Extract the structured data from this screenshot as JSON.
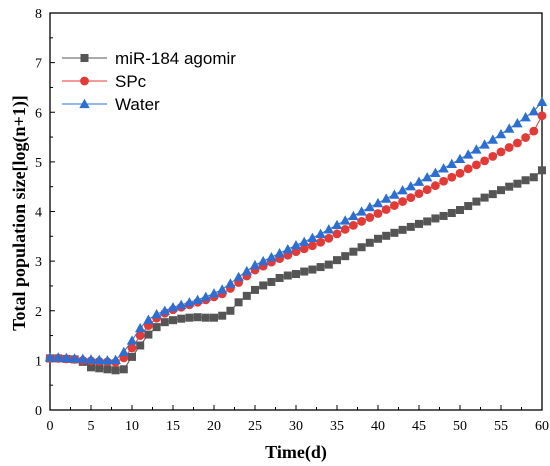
{
  "chart_data": {
    "type": "line",
    "title": "",
    "xlabel": "Time(d)",
    "ylabel": "Total population size[log(n+1)]",
    "xlim": [
      0,
      60
    ],
    "ylim": [
      0,
      8
    ],
    "x_ticks": [
      0,
      5,
      10,
      15,
      20,
      25,
      30,
      35,
      40,
      45,
      50,
      55,
      60
    ],
    "y_ticks": [
      0,
      1,
      2,
      3,
      4,
      5,
      6,
      7,
      8
    ],
    "grid": false,
    "legend_position": "top-left",
    "x": [
      0,
      1,
      2,
      3,
      4,
      5,
      6,
      7,
      8,
      9,
      10,
      11,
      12,
      13,
      14,
      15,
      16,
      17,
      18,
      19,
      20,
      21,
      22,
      23,
      24,
      25,
      26,
      27,
      28,
      29,
      30,
      31,
      32,
      33,
      34,
      35,
      36,
      37,
      38,
      39,
      40,
      41,
      42,
      43,
      44,
      45,
      46,
      47,
      48,
      49,
      50,
      51,
      52,
      53,
      54,
      55,
      56,
      57,
      58,
      59,
      60
    ],
    "series": [
      {
        "name": "miR-184 agomir",
        "marker": "square",
        "color": "#555555",
        "values": [
          1.04,
          1.04,
          1.03,
          1.02,
          0.97,
          0.86,
          0.84,
          0.82,
          0.8,
          0.82,
          1.07,
          1.3,
          1.52,
          1.67,
          1.77,
          1.81,
          1.84,
          1.86,
          1.87,
          1.86,
          1.86,
          1.9,
          2.0,
          2.17,
          2.3,
          2.42,
          2.51,
          2.58,
          2.66,
          2.71,
          2.74,
          2.79,
          2.83,
          2.88,
          2.93,
          3.02,
          3.1,
          3.19,
          3.28,
          3.37,
          3.45,
          3.51,
          3.57,
          3.63,
          3.69,
          3.75,
          3.8,
          3.86,
          3.91,
          3.97,
          4.03,
          4.11,
          4.2,
          4.28,
          4.35,
          4.43,
          4.5,
          4.56,
          4.63,
          4.69,
          4.83
        ]
      },
      {
        "name": "SPc",
        "marker": "circle",
        "color": "#e53935",
        "values": [
          1.04,
          1.04,
          1.03,
          1.02,
          1.0,
          0.99,
          0.98,
          0.97,
          0.96,
          1.05,
          1.25,
          1.5,
          1.7,
          1.85,
          1.95,
          2.02,
          2.07,
          2.12,
          2.17,
          2.22,
          2.28,
          2.34,
          2.45,
          2.57,
          2.7,
          2.82,
          2.9,
          2.98,
          3.05,
          3.12,
          3.19,
          3.25,
          3.31,
          3.38,
          3.46,
          3.55,
          3.64,
          3.72,
          3.8,
          3.88,
          3.96,
          4.04,
          4.12,
          4.2,
          4.28,
          4.36,
          4.44,
          4.52,
          4.61,
          4.69,
          4.77,
          4.86,
          4.94,
          5.02,
          5.11,
          5.2,
          5.29,
          5.38,
          5.49,
          5.62,
          5.93
        ]
      },
      {
        "name": "Water",
        "marker": "triangle",
        "color": "#2b6fd6",
        "values": [
          1.06,
          1.06,
          1.05,
          1.04,
          1.03,
          1.02,
          1.01,
          1.0,
          1.01,
          1.17,
          1.4,
          1.65,
          1.82,
          1.93,
          2.0,
          2.07,
          2.12,
          2.17,
          2.22,
          2.28,
          2.35,
          2.43,
          2.55,
          2.68,
          2.8,
          2.92,
          3.0,
          3.08,
          3.16,
          3.24,
          3.32,
          3.39,
          3.47,
          3.55,
          3.64,
          3.73,
          3.82,
          3.91,
          4.0,
          4.09,
          4.17,
          4.26,
          4.34,
          4.43,
          4.51,
          4.6,
          4.69,
          4.78,
          4.87,
          4.96,
          5.06,
          5.15,
          5.25,
          5.35,
          5.45,
          5.56,
          5.67,
          5.78,
          5.9,
          6.02,
          6.21
        ]
      }
    ]
  }
}
